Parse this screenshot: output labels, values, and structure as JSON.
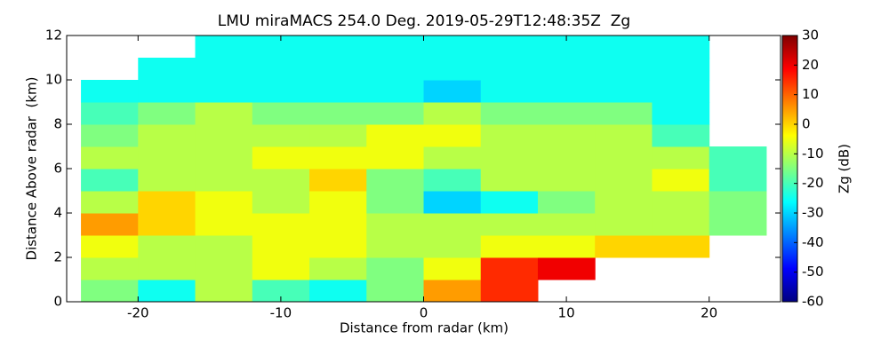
{
  "chart_data": {
    "type": "heatmap",
    "title": "LMU miraMACS 254.0 Deg. 2019-05-29T12:48:35Z  Zg",
    "x_label": "Distance from radar (km)",
    "y_label": "Distance Above radar  (km)",
    "colorbar_label": "Zg (dB)",
    "colormap": "jet",
    "xlim": [
      -25,
      25
    ],
    "ylim": [
      0,
      12
    ],
    "xticks": [
      -20,
      -10,
      0,
      10,
      20
    ],
    "yticks": [
      0,
      2,
      4,
      6,
      8,
      10,
      12
    ],
    "clim": [
      -60,
      30
    ],
    "cticks": [
      -60,
      -50,
      -40,
      -30,
      -20,
      -10,
      0,
      10,
      20,
      30
    ],
    "x_edges": [
      -24,
      -20,
      -16,
      -12,
      -8,
      -4,
      0,
      4,
      8,
      12,
      16,
      20,
      24
    ],
    "y_edges": [
      0,
      1,
      2,
      3,
      4,
      5,
      6,
      7,
      8,
      9,
      10,
      11,
      12
    ],
    "values": [
      [
        -15,
        -25,
        -10,
        -20,
        -25,
        -15,
        5,
        15,
        null,
        null,
        null,
        null
      ],
      [
        -10,
        -10,
        -10,
        -5,
        -10,
        -15,
        -5,
        15,
        20,
        null,
        null,
        null
      ],
      [
        -5,
        -10,
        -10,
        -5,
        -5,
        -10,
        -10,
        -5,
        -5,
        0,
        0,
        null
      ],
      [
        5,
        0,
        -5,
        -5,
        -5,
        -10,
        -10,
        -10,
        -10,
        -10,
        -10,
        -15
      ],
      [
        -10,
        0,
        -5,
        -10,
        -5,
        -15,
        -30,
        -25,
        -15,
        -10,
        -10,
        -15
      ],
      [
        -20,
        -10,
        -10,
        -10,
        0,
        -15,
        -20,
        -10,
        -10,
        -10,
        -5,
        -20
      ],
      [
        -10,
        -10,
        -10,
        -5,
        -5,
        -5,
        -10,
        -10,
        -10,
        -10,
        -10,
        -20
      ],
      [
        -15,
        -10,
        -10,
        -10,
        -10,
        -5,
        -5,
        -10,
        -10,
        -10,
        -20,
        null
      ],
      [
        -20,
        -15,
        -10,
        -15,
        -15,
        -15,
        -10,
        -15,
        -15,
        -15,
        -25,
        null
      ],
      [
        -25,
        -25,
        -25,
        -25,
        -25,
        -25,
        -30,
        -25,
        -25,
        -25,
        -25,
        null
      ],
      [
        null,
        -25,
        -25,
        -25,
        -25,
        -25,
        -25,
        -25,
        -25,
        -25,
        -25,
        null
      ],
      [
        null,
        null,
        -25,
        -25,
        -25,
        -25,
        -25,
        -25,
        -25,
        -25,
        -25,
        null
      ]
    ]
  }
}
